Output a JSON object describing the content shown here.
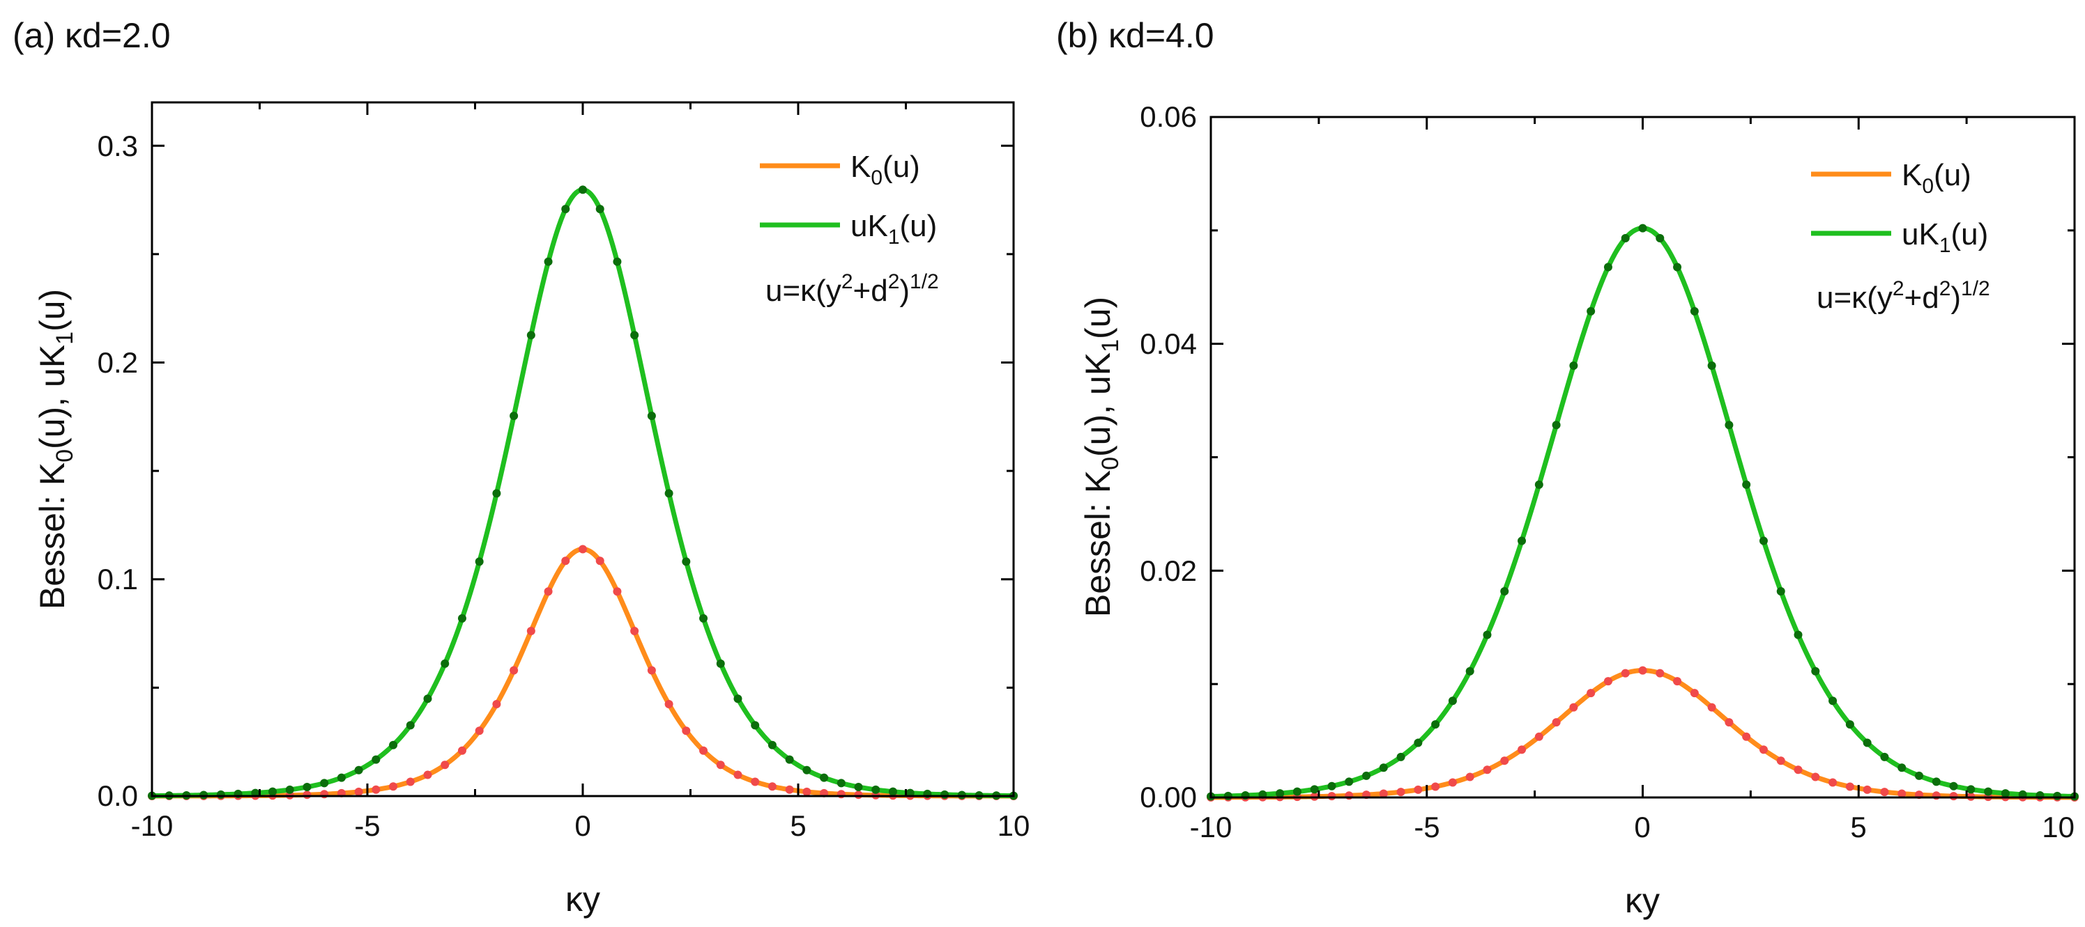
{
  "chart_data": [
    {
      "type": "line",
      "panel_label": "(a)",
      "param_label": "κd=2.0",
      "kd": 2.0,
      "title": "(a) κd=2.0",
      "xlabel": "κy",
      "ylabel": "Bessel:  K0(u), uK1(u)",
      "ylabel_parts": {
        "prefix": "Bessel:  K",
        "sub0": "0",
        "mid": "(u), uK",
        "sub1": "1",
        "suffix": "(u)"
      },
      "xlim": [
        -10,
        10
      ],
      "ylim": [
        0,
        0.32
      ],
      "xticks": [
        -10,
        -5,
        0,
        5,
        10
      ],
      "xtick_labels": [
        "-10",
        "-5",
        "0",
        "5",
        "10"
      ],
      "yticks": [
        0,
        0.1,
        0.2,
        0.3
      ],
      "ytick_labels": [
        "0.0",
        "0.1",
        "0.2",
        "0.3"
      ],
      "legend_location": "top-right",
      "annotation": {
        "text": "u=κ(y2+d2)1/2",
        "parts": [
          "u=κ(y",
          "2",
          "+d",
          "2",
          ")",
          "1/2"
        ]
      },
      "series": [
        {
          "name": "K0(u)",
          "base": "K",
          "sub": "0",
          "arg": "(u)",
          "function": "K0",
          "peak_value": 0.1139,
          "line_color": "#ff8c1a",
          "marker_color": "#f04a4a",
          "line": "solid",
          "markers": "dots"
        },
        {
          "name": "uK1(u)",
          "base": "uK",
          "sub": "1",
          "arg": "(u)",
          "function": "uK1",
          "peak_value": 0.2797,
          "line_color": "#1fbf1f",
          "marker_color": "#0b6e0b",
          "line": "solid",
          "markers": "dots"
        }
      ],
      "marker_step": 0.4
    },
    {
      "type": "line",
      "panel_label": "(b)",
      "param_label": "κd=4.0",
      "kd": 4.0,
      "title": "(b) κd=4.0",
      "xlabel": "κy",
      "ylabel": "Bessel:  K0(u), uK1(u)",
      "ylabel_parts": {
        "prefix": "Bessel:  K",
        "sub0": "0",
        "mid": "(u), uK",
        "sub1": "1",
        "suffix": "(u)"
      },
      "xlim": [
        -10,
        10
      ],
      "ylim": [
        0,
        0.06
      ],
      "xticks": [
        -10,
        -5,
        0,
        5,
        10
      ],
      "xtick_labels": [
        "-10",
        "-5",
        "0",
        "5",
        "10"
      ],
      "yticks": [
        0,
        0.02,
        0.04,
        0.06
      ],
      "ytick_labels": [
        "0.00",
        "0.02",
        "0.04",
        "0.06"
      ],
      "legend_location": "top-right",
      "annotation": {
        "text": "u=κ(y2+d2)1/2",
        "parts": [
          "u=κ(y",
          "2",
          "+d",
          "2",
          ")",
          "1/2"
        ]
      },
      "series": [
        {
          "name": "K0(u)",
          "base": "K",
          "sub": "0",
          "arg": "(u)",
          "function": "K0",
          "peak_value": 0.0112,
          "line_color": "#ff8c1a",
          "marker_color": "#f04a4a",
          "line": "solid",
          "markers": "dots"
        },
        {
          "name": "uK1(u)",
          "base": "uK",
          "sub": "1",
          "arg": "(u)",
          "function": "uK1",
          "peak_value": 0.0502,
          "line_color": "#1fbf1f",
          "marker_color": "#0b6e0b",
          "line": "solid",
          "markers": "dots"
        }
      ],
      "marker_step": 0.4
    }
  ]
}
